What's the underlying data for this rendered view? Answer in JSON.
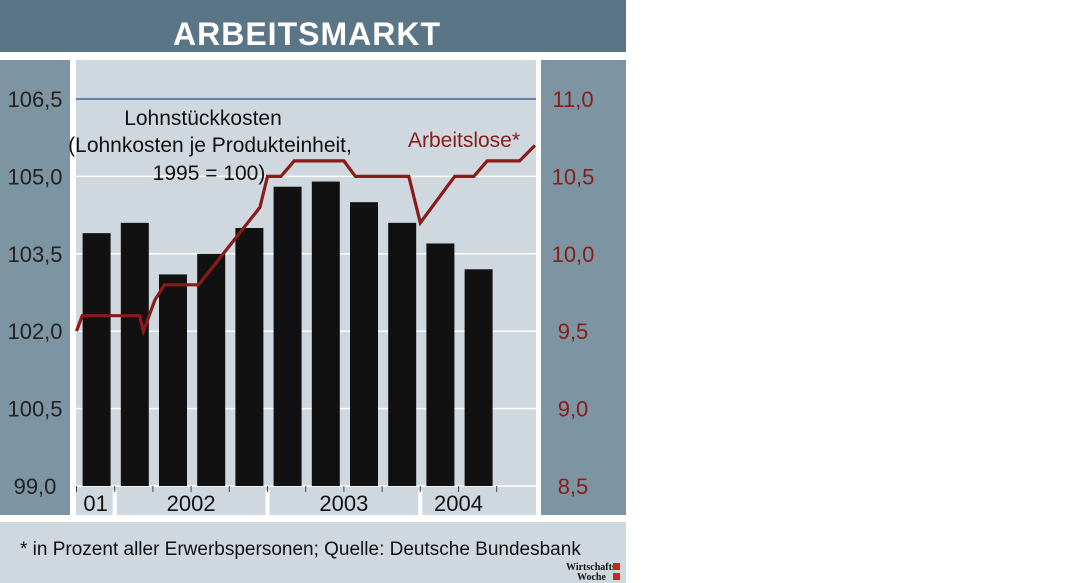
{
  "chart_data": {
    "type": "bar",
    "title": "ARBEITSMARKT",
    "categories": [
      "2001-Q4",
      "2002-Q1",
      "2002-Q2",
      "2002-Q3",
      "2002-Q4",
      "2003-Q1",
      "2003-Q2",
      "2003-Q3",
      "2003-Q4",
      "2004-Q1",
      "2004-Q2"
    ],
    "x_group_labels": [
      "01",
      "2002",
      "2003",
      "2004"
    ],
    "series": [
      {
        "name": "Lohnstückkosten",
        "type": "bar",
        "axis": "left",
        "color": "#111111",
        "values": [
          103.9,
          104.1,
          103.1,
          103.5,
          104.0,
          104.8,
          104.9,
          104.5,
          104.1,
          103.7,
          103.2
        ]
      },
      {
        "name": "Arbeitslose*",
        "type": "line",
        "axis": "right",
        "color": "#8b1a1a",
        "points": [
          [
            0,
            9.5
          ],
          [
            0.15,
            9.6
          ],
          [
            1.65,
            9.6
          ],
          [
            1.75,
            9.5
          ],
          [
            2.05,
            9.7
          ],
          [
            2.3,
            9.8
          ],
          [
            3.2,
            9.8
          ],
          [
            4.8,
            10.3
          ],
          [
            5.0,
            10.5
          ],
          [
            5.35,
            10.5
          ],
          [
            5.7,
            10.6
          ],
          [
            7.0,
            10.6
          ],
          [
            7.3,
            10.5
          ],
          [
            8.7,
            10.5
          ],
          [
            9.0,
            10.2
          ],
          [
            9.9,
            10.5
          ],
          [
            10.4,
            10.5
          ],
          [
            10.75,
            10.6
          ],
          [
            11.6,
            10.6
          ],
          [
            12.0,
            10.7
          ]
        ]
      }
    ],
    "left_axis": {
      "ticks": [
        "106,5",
        "105,0",
        "103,5",
        "102,0",
        "100,5",
        "99,0"
      ],
      "ylim": [
        99.0,
        106.5
      ]
    },
    "right_axis": {
      "ticks": [
        "11,0",
        "10,5",
        "10,0",
        "9,5",
        "9,0",
        "8,5"
      ],
      "ylim": [
        8.5,
        11.0
      ]
    },
    "annotations": {
      "bar_label_line1": "Lohnstückkosten",
      "bar_label_line2": "(Lohnkosten je Produkteinheit,",
      "bar_label_line3": "1995 = 100)",
      "line_label": "Arbeitslose*"
    },
    "footnote": "* in Prozent aller Erwerbspersonen; Quelle: Deutsche Bundesbank",
    "logo": {
      "line1": "Wirtschafts",
      "line2": "Woche"
    },
    "grid": true,
    "colors": {
      "header": "#5a7585",
      "axis_band": "#7d95a3",
      "plot_bg": "#cfd8df",
      "bars": "#111111",
      "line": "#8b1a1a",
      "top_rule": "#5f84a8"
    }
  }
}
